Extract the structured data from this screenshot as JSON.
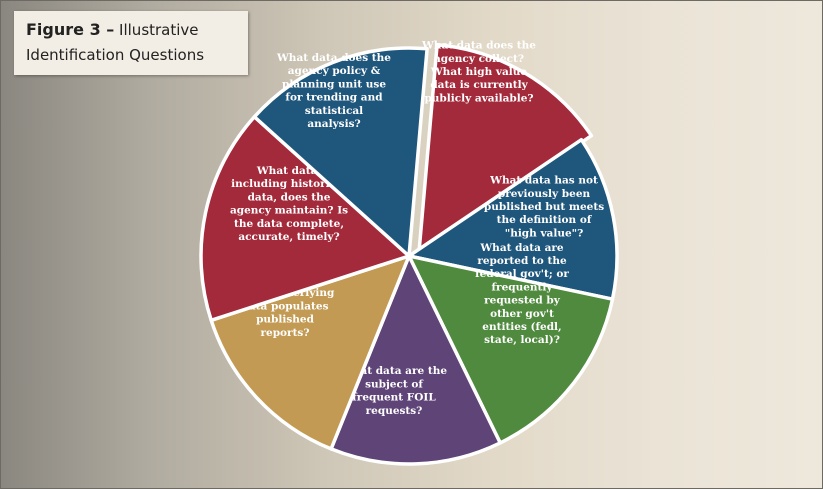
{
  "title": {
    "figure_label": "Figure 3 –",
    "subtitle_part": " Illustrative",
    "line2": "Identification Questions"
  },
  "slices": [
    {
      "color": "#a32a3b",
      "lines": [
        "What data does the",
        "agency collect?",
        "What high value",
        "data is currently",
        "publicly available?"
      ]
    },
    {
      "color": "#1f567c",
      "lines": [
        "What data has not",
        "previously been",
        "published but meets",
        "the definition of",
        "\"high value\"?"
      ]
    },
    {
      "color": "#4f8a3e",
      "lines": [
        "What data are",
        "reported to the",
        "federal gov't; or",
        "frequently",
        "requested by",
        "other gov't",
        "entities (fedl,",
        "state, local)?"
      ]
    },
    {
      "color": "#5f4478",
      "lines": [
        "What data are the",
        "subject of",
        "frequent FOIL",
        "requests?"
      ]
    },
    {
      "color": "#c29a53",
      "lines": [
        "What underlying",
        "data populates",
        "published",
        "reports?"
      ]
    },
    {
      "color": "#a32a3b",
      "lines": [
        "What data,",
        "including historical",
        "data, does the",
        "agency maintain?  Is",
        "the data complete,",
        "accurate, timely?"
      ]
    },
    {
      "color": "#1f567c",
      "lines": [
        "What data does the",
        "agency policy &",
        "planning unit use",
        "for trending and",
        "statistical",
        "analysis?"
      ]
    }
  ]
}
